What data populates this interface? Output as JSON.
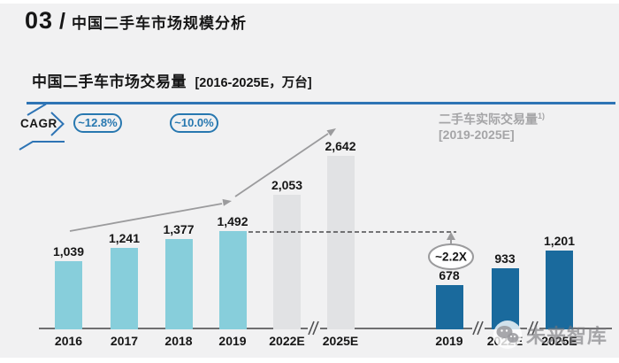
{
  "page": {
    "section_number": "03",
    "section_divider": "/",
    "section_title": "中国二手车市场规模分析"
  },
  "chart_header": {
    "title_main": "中国二手车市场交易量",
    "title_range": "[2016-2025E，万台]",
    "cagr_label": "CAGR",
    "cagr_badges": [
      "~12.8%",
      "~10.0%"
    ],
    "legend_title": "二手车实际交易量",
    "legend_note_ref": "1)",
    "legend_range": "[2019-2025E]"
  },
  "watermark": {
    "text": "未来智库",
    "icon": "wechat-logo-icon"
  },
  "colors": {
    "accent_blue": "#2E74B5",
    "badge_blue": "#2878B0",
    "bar_actual": "#87CEDB",
    "bar_estimate": "#E1E2E4",
    "bar_dark": "#1A6A9D",
    "gray_text": "#A5A5A7",
    "arrow_gray": "#9B9B9D",
    "background": "#F1F1F2"
  },
  "chart_data": {
    "type": "bar",
    "title": "中国二手车市场交易量 [2016-2025E，万台]",
    "unit": "万台",
    "ylim": [
      0,
      2800
    ],
    "grid": false,
    "legend_position": "top-right",
    "groups": [
      {
        "name": "中国二手车市场交易量",
        "bars": [
          {
            "label": "2016",
            "value": 1039,
            "display": "1,039",
            "style": "actual"
          },
          {
            "label": "2017",
            "value": 1241,
            "display": "1,241",
            "style": "actual"
          },
          {
            "label": "2018",
            "value": 1377,
            "display": "1,377",
            "style": "actual"
          },
          {
            "label": "2019",
            "value": 1492,
            "display": "1,492",
            "style": "actual"
          },
          {
            "label": "2022E",
            "value": 2053,
            "display": "2,053",
            "style": "estimate"
          },
          {
            "label": "2025E",
            "value": 2642,
            "display": "2,642",
            "style": "estimate"
          }
        ]
      },
      {
        "name": "二手车实际交易量 [2019-2025E]",
        "bars": [
          {
            "label": "2019",
            "value": 678,
            "display": "678",
            "style": "dark"
          },
          {
            "label": "2022E",
            "value": 933,
            "display": "933",
            "style": "dark"
          },
          {
            "label": "2025E",
            "value": 1201,
            "display": "1,201",
            "style": "dark"
          }
        ]
      }
    ],
    "annotations": {
      "cagr": [
        "~12.8%",
        "~10.0%"
      ],
      "multiplier": "~2.2X",
      "dashed_reference_value": 1492
    },
    "axis_breaks": true
  }
}
